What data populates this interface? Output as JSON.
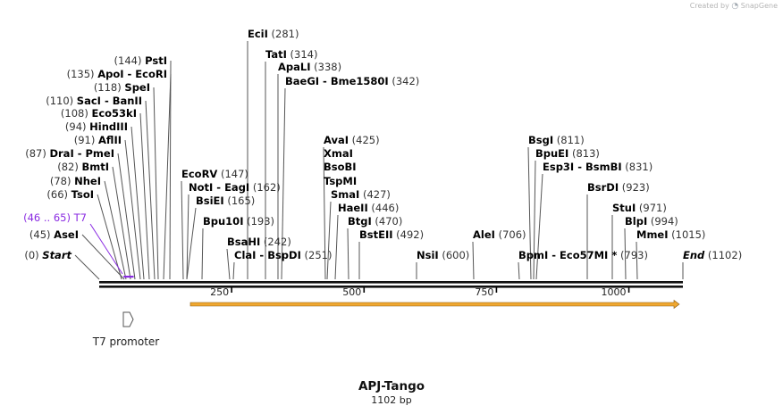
{
  "header": {
    "created_by": "Created by",
    "logo_text": "SnapGene"
  },
  "map": {
    "title": "APJ-Tango",
    "size_label": "1102 bp",
    "total_bp": 1102,
    "ticks": [
      {
        "bp": 250,
        "label": "250"
      },
      {
        "bp": 500,
        "label": "500"
      },
      {
        "bp": 750,
        "label": "750"
      },
      {
        "bp": 1000,
        "label": "1000"
      }
    ],
    "sites": [
      {
        "id": "eci",
        "side": "r",
        "enz": "EciI",
        "pos": "(281)",
        "bp": 281
      },
      {
        "id": "tat",
        "side": "r",
        "enz": "TatI",
        "pos": "(314)",
        "bp": 314
      },
      {
        "id": "apa",
        "side": "r",
        "enz": "ApaLI",
        "pos": "(338)",
        "bp": 338
      },
      {
        "id": "bae",
        "side": "r",
        "enz": "BaeGI  -  Bme1580I",
        "pos": "(342)",
        "bp": 342
      },
      {
        "id": "pst",
        "side": "l",
        "enz": "PstI",
        "pos": "(144)",
        "bp": 144
      },
      {
        "id": "apo",
        "side": "l",
        "enz": "ApoI  -  EcoRI",
        "pos": "(135)",
        "bp": 135
      },
      {
        "id": "spe",
        "side": "l",
        "enz": "SpeI",
        "pos": "(118)",
        "bp": 118
      },
      {
        "id": "sac",
        "side": "l",
        "enz": "SacI  -  BanII",
        "pos": "(110)",
        "bp": 110
      },
      {
        "id": "e53",
        "side": "l",
        "enz": "Eco53kI",
        "pos": "(108)",
        "bp": 108
      },
      {
        "id": "hind",
        "side": "l",
        "enz": "HindIII",
        "pos": "(94)",
        "bp": 94
      },
      {
        "id": "afl",
        "side": "l",
        "enz": "AflII",
        "pos": "(91)",
        "bp": 91
      },
      {
        "id": "dra",
        "side": "l",
        "enz": "DraI  -  PmeI",
        "pos": "(87)",
        "bp": 87
      },
      {
        "id": "bmt",
        "side": "l",
        "enz": "BmtI",
        "pos": "(82)",
        "bp": 82
      },
      {
        "id": "nhe",
        "side": "l",
        "enz": "NheI",
        "pos": "(78)",
        "bp": 78
      },
      {
        "id": "tso",
        "side": "l",
        "enz": "TsoI",
        "pos": "(66)",
        "bp": 66
      },
      {
        "id": "ase",
        "side": "l",
        "enz": "AseI",
        "pos": "(45)",
        "bp": 45
      },
      {
        "id": "start",
        "side": "l",
        "enz": "Start",
        "pos": "(0)",
        "bp": 0,
        "italic": true
      },
      {
        "id": "ecorv",
        "side": "r",
        "enz": "EcoRV",
        "pos": "(147)",
        "bp": 147
      },
      {
        "id": "not",
        "side": "r",
        "enz": "NotI  -  EagI",
        "pos": "(162)",
        "bp": 162
      },
      {
        "id": "bsie",
        "side": "r",
        "enz": "BsiEI",
        "pos": "(165)",
        "bp": 165
      },
      {
        "id": "bpu10",
        "side": "r",
        "enz": "Bpu10I",
        "pos": "(193)",
        "bp": 193
      },
      {
        "id": "bsah",
        "side": "r",
        "enz": "BsaHI",
        "pos": "(242)",
        "bp": 242
      },
      {
        "id": "cla",
        "side": "r",
        "enz": "ClaI  -  BspDI",
        "pos": "(251)",
        "bp": 251
      },
      {
        "id": "ava",
        "side": "r",
        "enz": "AvaI",
        "pos": "(425)",
        "bp": 425
      },
      {
        "id": "xma",
        "side": "r",
        "enz": "XmaI",
        "pos": "",
        "bp": 425
      },
      {
        "id": "bsob",
        "side": "r",
        "enz": "BsoBI",
        "pos": "",
        "bp": 425
      },
      {
        "id": "tspm",
        "side": "r",
        "enz": "TspMI",
        "pos": "",
        "bp": 425
      },
      {
        "id": "sma",
        "side": "r",
        "enz": "SmaI",
        "pos": "(427)",
        "bp": 427
      },
      {
        "id": "hae2",
        "side": "r",
        "enz": "HaeII",
        "pos": "(446)",
        "bp": 446
      },
      {
        "id": "btg",
        "side": "r",
        "enz": "BtgI",
        "pos": "(470)",
        "bp": 470
      },
      {
        "id": "bste",
        "side": "r",
        "enz": "BstEII",
        "pos": "(492)",
        "bp": 492
      },
      {
        "id": "nsi",
        "side": "r",
        "enz": "NsiI",
        "pos": "(600)",
        "bp": 600
      },
      {
        "id": "ale",
        "side": "r",
        "enz": "AleI",
        "pos": "(706)",
        "bp": 706
      },
      {
        "id": "bsg",
        "side": "r",
        "enz": "BsgI",
        "pos": "(811)",
        "bp": 811
      },
      {
        "id": "bpue",
        "side": "r",
        "enz": "BpuEI",
        "pos": "(813)",
        "bp": 813
      },
      {
        "id": "esp3",
        "side": "r",
        "enz": "Esp3I  -  BsmBI",
        "pos": "(831)",
        "bp": 831
      },
      {
        "id": "bpm",
        "side": "r",
        "enz": "BpmI  -  Eco57MI *",
        "pos": "(793)",
        "bp": 793
      },
      {
        "id": "bsrd",
        "side": "r",
        "enz": "BsrDI",
        "pos": "(923)",
        "bp": 923
      },
      {
        "id": "stu",
        "side": "r",
        "enz": "StuI",
        "pos": "(971)",
        "bp": 971
      },
      {
        "id": "blp",
        "side": "r",
        "enz": "BlpI",
        "pos": "(994)",
        "bp": 994
      },
      {
        "id": "mme",
        "side": "r",
        "enz": "MmeI",
        "pos": "(1015)",
        "bp": 1015
      },
      {
        "id": "end",
        "side": "r",
        "enz": "End",
        "pos": "(1102)",
        "bp": 1102,
        "italic": true
      }
    ],
    "primer": {
      "name": "T7",
      "range": "(46 .. 65)",
      "color": "#8a2be2"
    },
    "promoter": {
      "label": "T7 promoter"
    },
    "feature_color": "#f0a830",
    "backbone_color": "#111111"
  }
}
